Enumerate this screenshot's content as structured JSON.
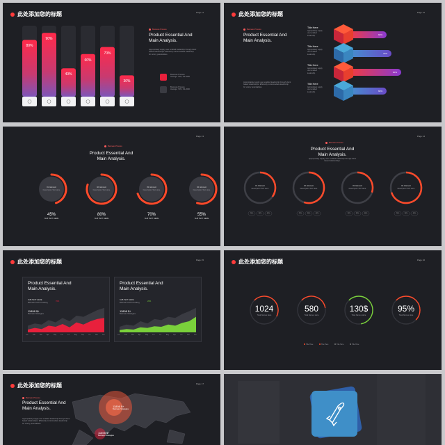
{
  "heading": "此处添加您的标题",
  "product_title": [
    "Product Essential And",
    "Main Analysis."
  ],
  "body_text": [
    "Appropriately supply user enabled leadership through client",
    "based relationships. Efficiently reintermediate leadership",
    "for victory potentialities."
  ],
  "tag_label": "Business Process",
  "pages": [
    "Page 11",
    "Page 12",
    "Page 13",
    "Page 14",
    "Page 15",
    "Page 16",
    "Page 17"
  ],
  "slide1": {
    "bars": [
      {
        "value": 80,
        "label": "80%"
      },
      {
        "value": 90,
        "label": "90%"
      },
      {
        "value": 40,
        "label": "40%"
      },
      {
        "value": 60,
        "label": "60%"
      },
      {
        "value": 70,
        "label": "70%"
      },
      {
        "value": 30,
        "label": "30%"
      }
    ],
    "icons": [
      "camera-icon",
      "person-icon",
      "rocket-icon",
      "store-icon",
      "briefcase-icon",
      "bulb-icon"
    ],
    "legend": [
      {
        "name": "Business Process",
        "sub": "Average: 79%, CS-2000"
      },
      {
        "name": "Business Process",
        "sub": "Average: 79%, CS-2000"
      }
    ]
  },
  "slide2": {
    "items": [
      {
        "title": "Title Here",
        "desc": [
          "Appropriately supply",
          "user enabled",
          "leadership."
        ],
        "value": "60%",
        "fraction": 0.6
      },
      {
        "title": "Title Here",
        "desc": [
          "Appropriately supply",
          "user enabled",
          "leadership."
        ],
        "value": "70%",
        "fraction": 0.7
      },
      {
        "title": "Title Here",
        "desc": [
          "Appropriately supply",
          "user enabled",
          "leadership."
        ],
        "value": "90%",
        "fraction": 0.9
      },
      {
        "title": "Title Here",
        "desc": [
          "Appropriately supply",
          "user enabled",
          "leadership."
        ],
        "value": "60%",
        "fraction": 0.6
      }
    ]
  },
  "slide3": {
    "rings": [
      {
        "percent": 45,
        "label": "45%",
        "name": "01. Element",
        "desc": "Description Text Here",
        "sub": "SUB TEXT HERE"
      },
      {
        "percent": 80,
        "label": "80%",
        "name": "02. Element",
        "desc": "Description Text Here",
        "sub": "SUB TEXT HERE"
      },
      {
        "percent": 70,
        "label": "70%",
        "name": "03. Element",
        "desc": "Description Text Here",
        "sub": "SUB TEXT HERE"
      },
      {
        "percent": 55,
        "label": "55%",
        "name": "04. Element",
        "desc": "Description Text Here",
        "sub": "SUB TEXT HERE"
      }
    ]
  },
  "slide4": {
    "desc": [
      "Appropriately supply user enabled leadership through client",
      "based relationships."
    ],
    "rings": [
      {
        "percent": 35,
        "name": "01. Element",
        "desc": "Description Text Here",
        "chips": [
          "20%",
          "30%",
          "40%"
        ]
      },
      {
        "percent": 55,
        "name": "02. Element",
        "desc": "Description Text Here",
        "chips": [
          "20%",
          "30%",
          "40%"
        ]
      },
      {
        "percent": 30,
        "name": "03. Element",
        "desc": "Description Text Here",
        "chips": [
          "20%",
          "30%",
          "40%"
        ]
      },
      {
        "percent": 70,
        "name": "04. Element",
        "desc": "Description Text Here",
        "chips": [
          "20%",
          "30%",
          "40%"
        ]
      }
    ]
  },
  "slide5": {
    "panels": [
      {
        "sub1": "SUB TEXT HERE",
        "sub1b": "Business And Consulting",
        "percent": "76%",
        "value": "11898 $+",
        "value_sub": "Business Strategies",
        "color": "#e8203c",
        "x": [
          "Jan",
          "Feb",
          "Mar",
          "Apr",
          "May",
          "Jun",
          "Jul",
          "Aug",
          "Sep",
          "Oct",
          "Nov",
          "Dec"
        ],
        "front": [
          5,
          8,
          6,
          12,
          10,
          15,
          9,
          18,
          14,
          20,
          24,
          26
        ],
        "back": [
          12,
          16,
          14,
          22,
          18,
          26,
          20,
          30,
          28,
          34,
          40,
          44
        ]
      },
      {
        "sub1": "SUB TEXT HERE",
        "sub1b": "Business And Consulting",
        "percent": "26%",
        "value": "11898 $+",
        "value_sub": "Business Strategies",
        "color": "#7ad13b",
        "x": [
          "Jan",
          "Feb",
          "Mar",
          "Apr",
          "May",
          "Jun",
          "Jul",
          "Aug",
          "Sep",
          "Oct",
          "Nov",
          "Dec"
        ],
        "front": [
          4,
          6,
          5,
          9,
          8,
          11,
          10,
          14,
          12,
          17,
          20,
          28
        ],
        "back": [
          10,
          14,
          12,
          20,
          16,
          24,
          22,
          28,
          26,
          33,
          38,
          44
        ]
      }
    ]
  },
  "slide6": {
    "stats": [
      {
        "value": "1024",
        "label": "Total Names Here",
        "fraction": 0.45
      },
      {
        "value": "580",
        "label": "Total Names Here",
        "fraction": 0.35
      },
      {
        "value": "130$",
        "label": "Total Names Here",
        "fraction": 0.6
      },
      {
        "value": "95%",
        "label": "Total Names Here",
        "fraction": 0.5
      }
    ],
    "legend": [
      "Title Here",
      "Title Here",
      "Title Here",
      "Title Here"
    ]
  },
  "slide7": {
    "markers": [
      {
        "value": "11898 $+",
        "label": "Business Strategies"
      },
      {
        "value": "11898 $+",
        "label": "Business Strategies"
      }
    ]
  },
  "colors": {
    "bg": "#1e1f24",
    "red": "#ff3b3b",
    "blue": "#3f77c8"
  }
}
